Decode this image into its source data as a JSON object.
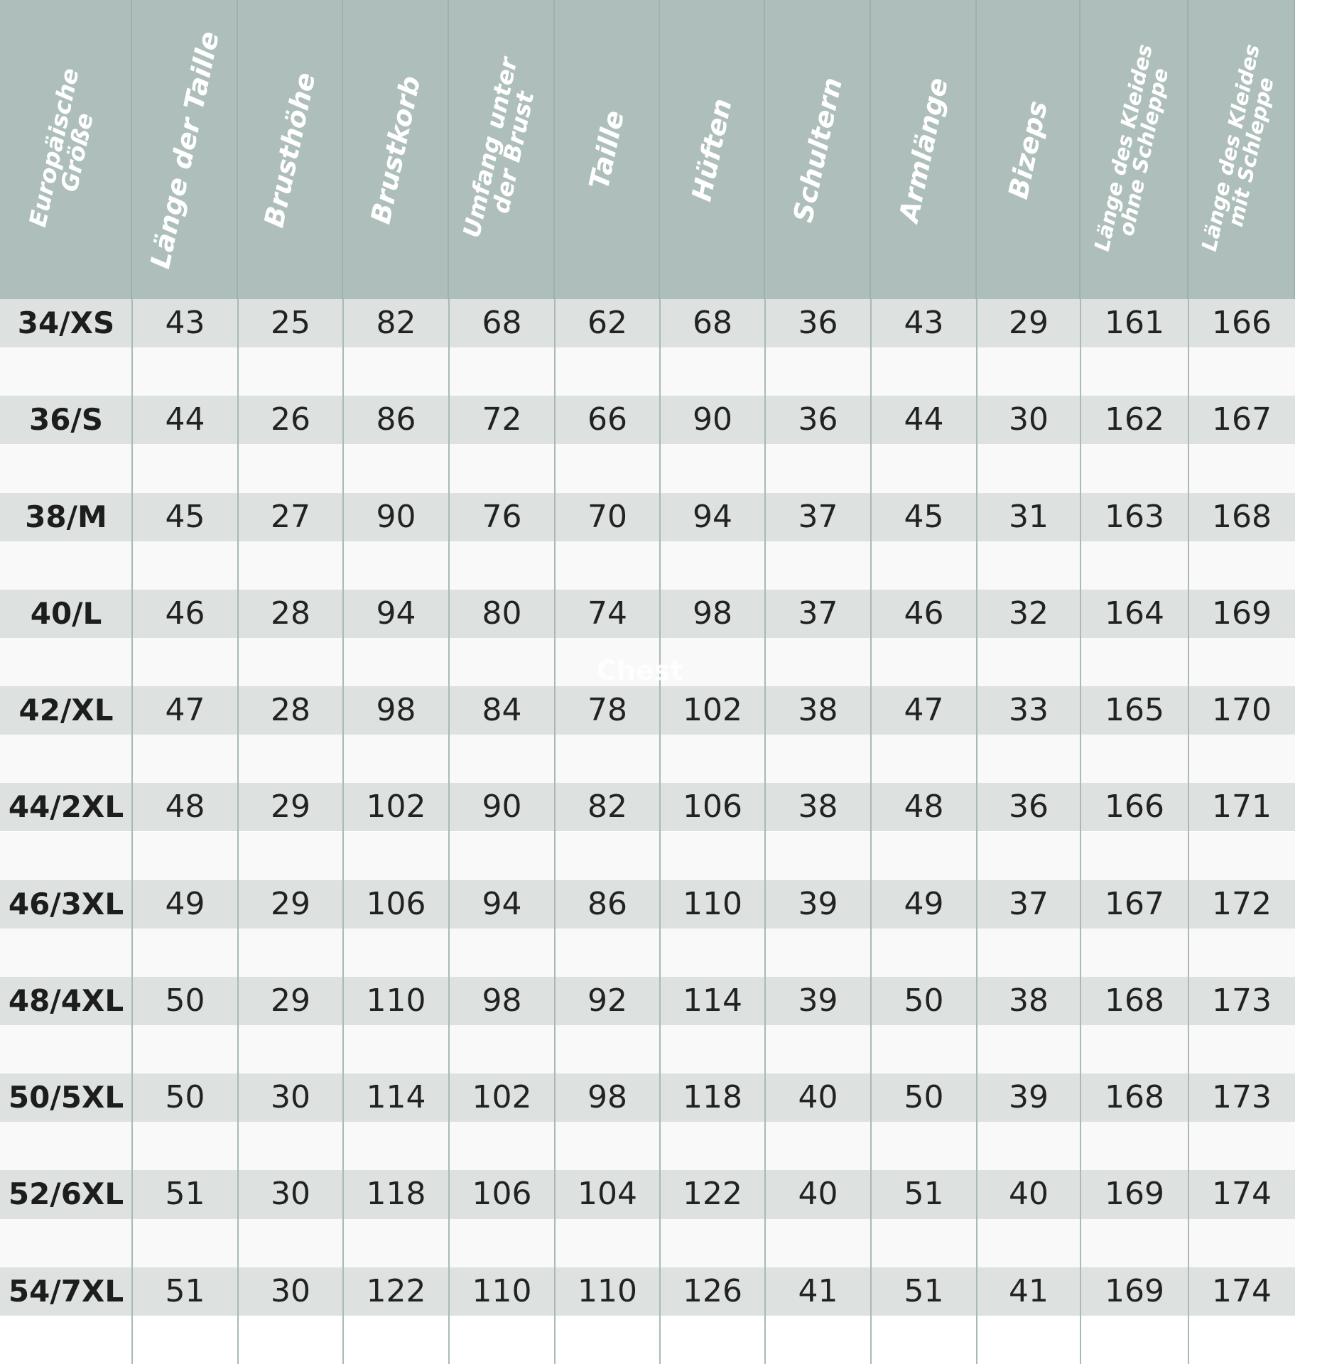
{
  "colors": {
    "header": "#aebfbb",
    "row_shaded": "#dde2e0",
    "row_plain": "#f8f9f8",
    "text": "#222222",
    "header_text": "#ffffff"
  },
  "columns": [
    "Europäische\nGröße",
    "Länge der Taille",
    "Brusthöhe",
    "Brustkorb",
    "Umfang unter\nder Brust",
    "Taille",
    "Hüften",
    "Schultern",
    "Armlänge",
    "Bizeps",
    "Länge des Kleides\nohne Schleppe",
    "Länge des Kleides\nmit Schleppe"
  ],
  "rows": [
    [
      "34/XS",
      "43",
      "25",
      "82",
      "68",
      "62",
      "68",
      "36",
      "43",
      "29",
      "161",
      "166"
    ],
    [
      "36/S",
      "44",
      "26",
      "86",
      "72",
      "66",
      "90",
      "36",
      "44",
      "30",
      "162",
      "167"
    ],
    [
      "38/M",
      "45",
      "27",
      "90",
      "76",
      "70",
      "94",
      "37",
      "45",
      "31",
      "163",
      "168"
    ],
    [
      "40/L",
      "46",
      "28",
      "94",
      "80",
      "74",
      "98",
      "37",
      "46",
      "32",
      "164",
      "169"
    ],
    [
      "42/XL",
      "47",
      "28",
      "98",
      "84",
      "78",
      "102",
      "38",
      "47",
      "33",
      "165",
      "170"
    ],
    [
      "44/2XL",
      "48",
      "29",
      "102",
      "90",
      "82",
      "106",
      "38",
      "48",
      "36",
      "166",
      "171"
    ],
    [
      "46/3XL",
      "49",
      "29",
      "106",
      "94",
      "86",
      "110",
      "39",
      "49",
      "37",
      "167",
      "172"
    ],
    [
      "48/4XL",
      "50",
      "29",
      "110",
      "98",
      "92",
      "114",
      "39",
      "50",
      "38",
      "168",
      "173"
    ],
    [
      "50/5XL",
      "50",
      "30",
      "114",
      "102",
      "98",
      "118",
      "40",
      "50",
      "39",
      "168",
      "173"
    ],
    [
      "52/6XL",
      "51",
      "30",
      "118",
      "106",
      "104",
      "122",
      "40",
      "51",
      "40",
      "169",
      "174"
    ],
    [
      "54/7XL",
      "51",
      "30",
      "122",
      "110",
      "110",
      "126",
      "41",
      "51",
      "41",
      "169",
      "174"
    ]
  ],
  "watermark": "Chest"
}
